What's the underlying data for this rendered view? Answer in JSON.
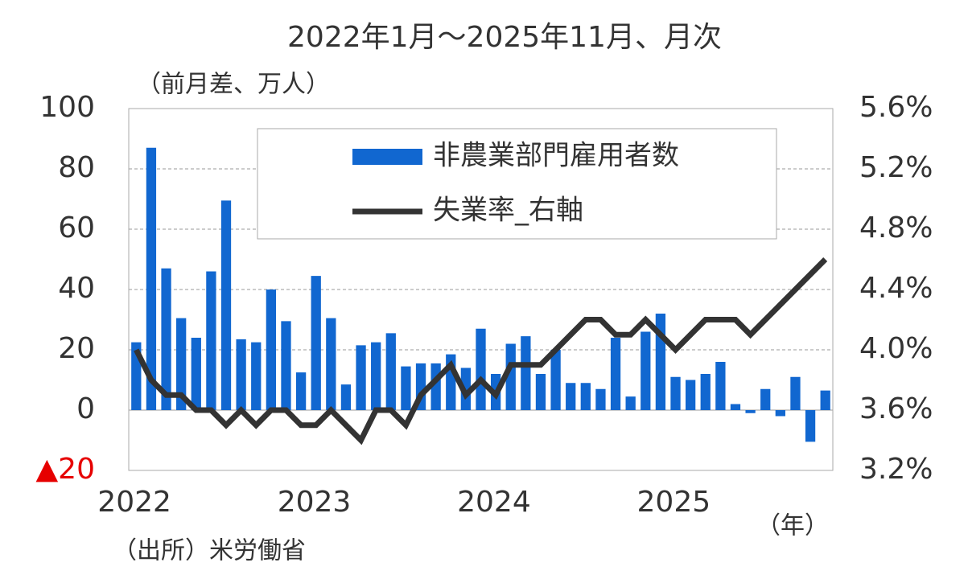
{
  "chart_data": {
    "type": "bar_line",
    "title": "2022年1月～2025年11月、月次",
    "y_label": "（前月差、万人）",
    "x_label": "（年）",
    "source": "（出所）米労働省",
    "categories": [
      "2022",
      null,
      null,
      null,
      null,
      null,
      null,
      null,
      null,
      null,
      null,
      null,
      "2023",
      null,
      null,
      null,
      null,
      null,
      null,
      null,
      null,
      null,
      null,
      null,
      "2024",
      null,
      null,
      null,
      null,
      null,
      null,
      null,
      null,
      null,
      null,
      null,
      "2025",
      null,
      null,
      null,
      null,
      null,
      null,
      null,
      null,
      null,
      null
    ],
    "series": [
      {
        "name": "非農業部門雇用者数",
        "type": "bar",
        "color": "#1167d0",
        "values": [
          22.5,
          87,
          47,
          30.5,
          24,
          46,
          69.5,
          23.5,
          22.5,
          40,
          29.5,
          12.5,
          44.5,
          30.5,
          8.5,
          21.5,
          22.5,
          25.5,
          14.5,
          15.5,
          15.5,
          18.5,
          14,
          27,
          12,
          22,
          24.5,
          12,
          20,
          9,
          9,
          7,
          24,
          4.5,
          26,
          32,
          11,
          10,
          12,
          16,
          2,
          -1,
          7,
          -2,
          11,
          -10.5,
          6.5
        ]
      },
      {
        "name": "失業率_右軸",
        "type": "line",
        "axis": "y2",
        "color": "#333333",
        "values": [
          4.0,
          3.8,
          3.7,
          3.7,
          3.6,
          3.6,
          3.5,
          3.6,
          3.5,
          3.6,
          3.6,
          3.5,
          3.5,
          3.6,
          3.5,
          3.4,
          3.6,
          3.6,
          3.5,
          3.7,
          3.8,
          3.9,
          3.7,
          3.8,
          3.7,
          3.9,
          3.9,
          3.9,
          4.0,
          4.1,
          4.2,
          4.2,
          4.1,
          4.1,
          4.2,
          4.1,
          4.0,
          4.1,
          4.2,
          4.2,
          4.2,
          4.1,
          4.2,
          4.3,
          4.4,
          4.5,
          4.6
        ]
      }
    ],
    "ylim": [
      -20,
      100
    ],
    "yticks": [
      {
        "value": -20,
        "label": "▲20",
        "color": "#e60000"
      },
      0,
      20,
      40,
      60,
      80,
      100
    ],
    "y2lim": [
      3.2,
      5.6
    ],
    "y2ticks": [
      {
        "value": 3.2,
        "label": "3.2%"
      },
      {
        "value": 3.6,
        "label": "3.6%"
      },
      {
        "value": 4.0,
        "label": "4.0%"
      },
      {
        "value": 4.4,
        "label": "4.4%"
      },
      {
        "value": 4.8,
        "label": "4.8%"
      },
      {
        "value": 5.2,
        "label": "5.2%"
      },
      {
        "value": 5.6,
        "label": "5.6%"
      }
    ],
    "grid": true
  }
}
